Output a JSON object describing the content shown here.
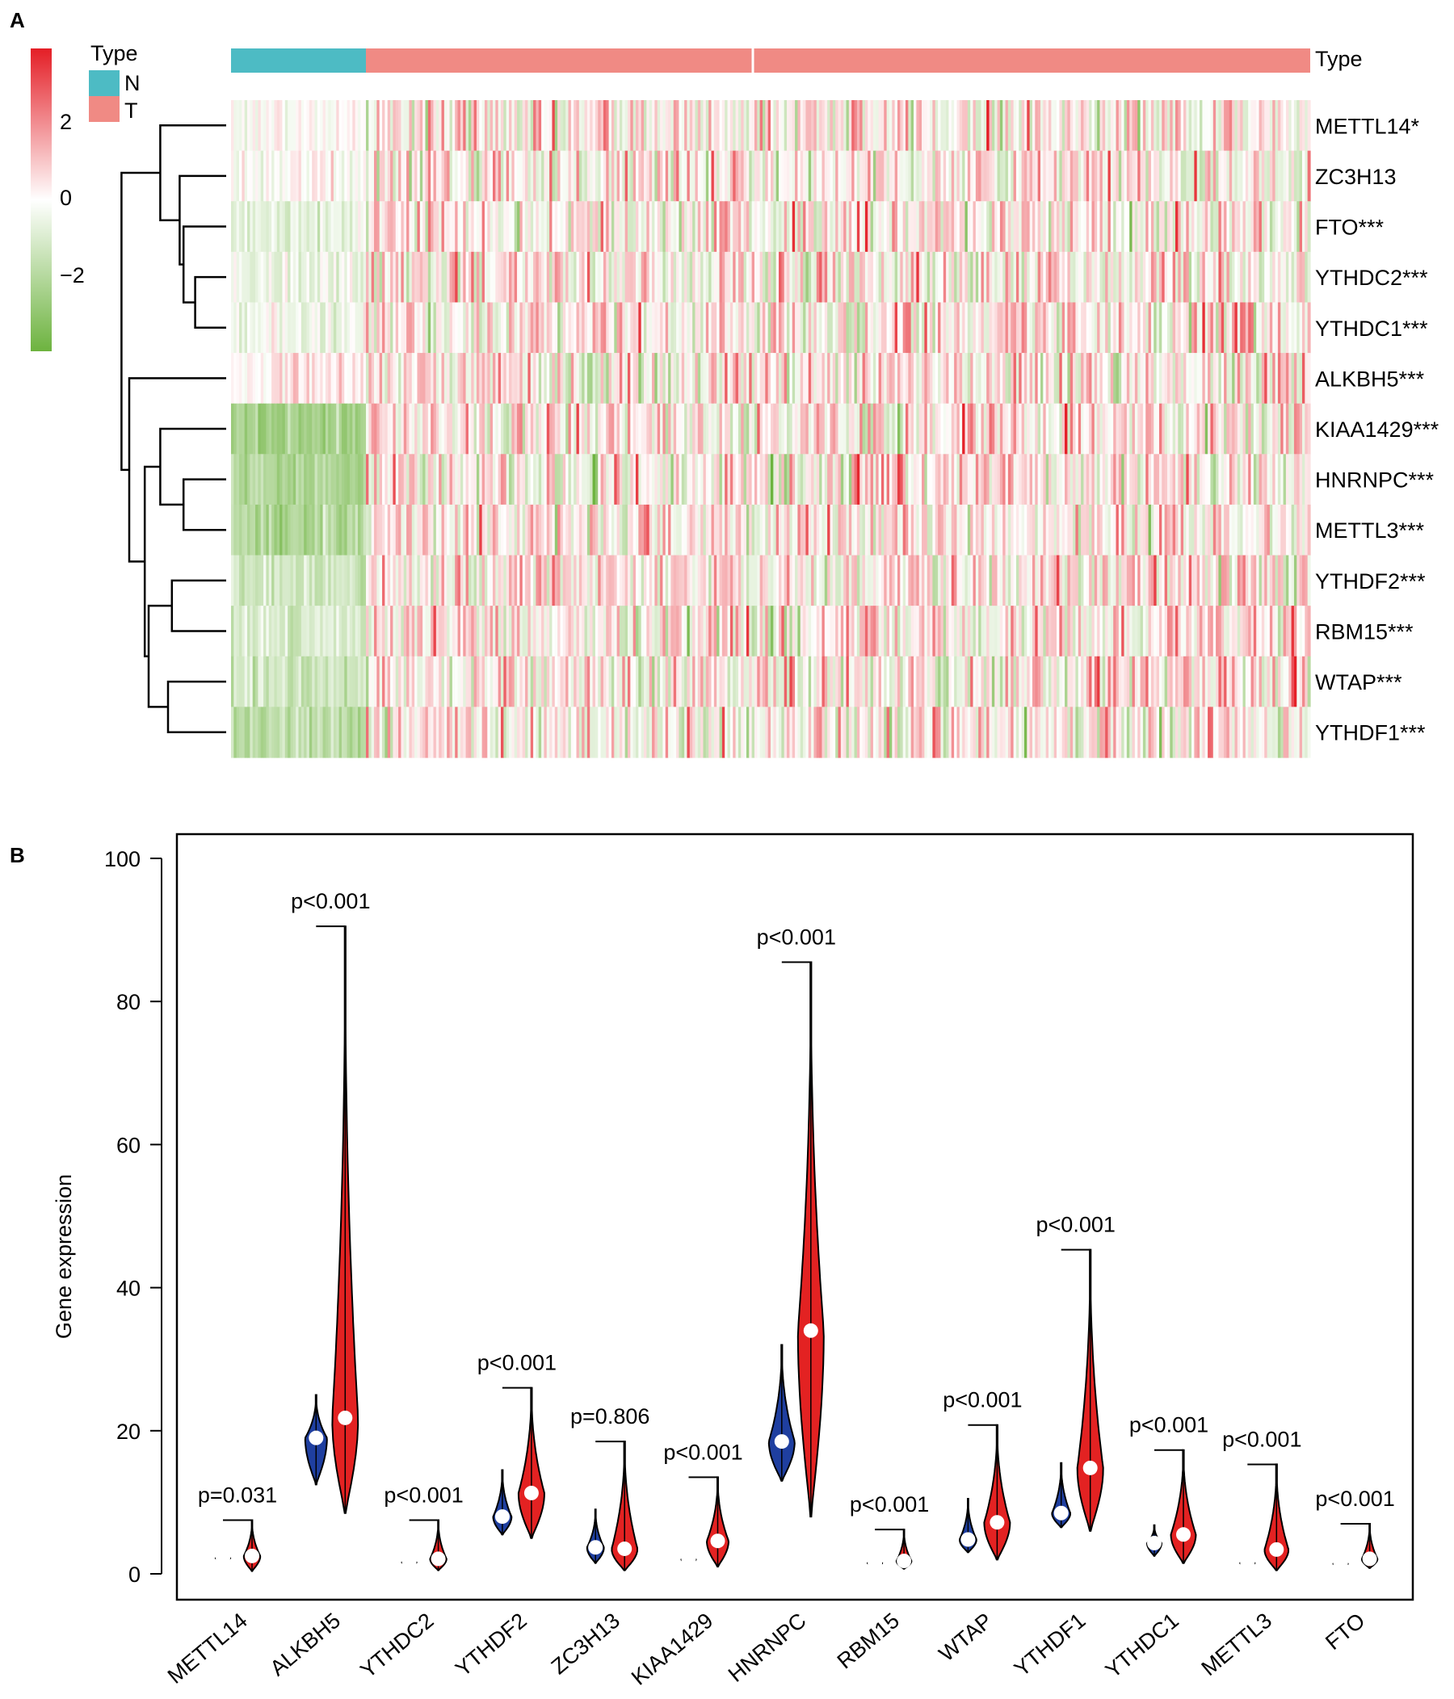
{
  "panels": [
    "A",
    "B"
  ],
  "heatmap": {
    "annotation_title": "Type",
    "annotation_label": "Type",
    "groups": [
      {
        "name": "N",
        "color": "#4DBBC4",
        "fraction": 0.125
      },
      {
        "name": "T",
        "color": "#F08A84",
        "fraction": 0.875
      }
    ],
    "colorbar": {
      "ticks": [
        "2",
        "0",
        "−2"
      ],
      "values": [
        2,
        0,
        -2
      ],
      "range": [
        -3.9,
        3.9
      ],
      "colors": {
        "high": "#E41E26",
        "mid": "#FFFFFF",
        "low": "#6DB33F"
      }
    },
    "rows": [
      {
        "label": "METTL14*",
        "n_bias": 0.0
      },
      {
        "label": "ZC3H13",
        "n_bias": 0.0
      },
      {
        "label": "FTO***",
        "n_bias": -0.6
      },
      {
        "label": "YTHDC2***",
        "n_bias": -0.5
      },
      {
        "label": "YTHDC1***",
        "n_bias": -0.4
      },
      {
        "label": "ALKBH5***",
        "n_bias": 0.3
      },
      {
        "label": "KIAA1429***",
        "n_bias": -2.2
      },
      {
        "label": "HNRNPC***",
        "n_bias": -2.1
      },
      {
        "label": "METTL3***",
        "n_bias": -2.0
      },
      {
        "label": "YTHDF2***",
        "n_bias": -1.3
      },
      {
        "label": "RBM15***",
        "n_bias": -1.0
      },
      {
        "label": "WTAP***",
        "n_bias": -1.2
      },
      {
        "label": "YTHDF1***",
        "n_bias": -1.8
      }
    ],
    "dendrogram": {
      "leaves": [
        {
          "label": "METTL14*",
          "order": 0
        },
        {
          "label": "ZC3H13",
          "order": 1
        },
        {
          "label": "FTO***",
          "order": 2
        },
        {
          "label": "YTHDC2***",
          "order": 3
        },
        {
          "label": "YTHDC1***",
          "order": 4
        },
        {
          "label": "ALKBH5***",
          "order": 5
        },
        {
          "label": "KIAA1429***",
          "order": 6
        },
        {
          "label": "HNRNPC***",
          "order": 7
        },
        {
          "label": "METTL3***",
          "order": 8
        },
        {
          "label": "YTHDF2***",
          "order": 9
        },
        {
          "label": "RBM15***",
          "order": 10
        },
        {
          "label": "WTAP***",
          "order": 11
        },
        {
          "label": "YTHDF1***",
          "order": 12
        }
      ],
      "merges": [
        [
          3,
          4,
          0.08
        ],
        [
          -1,
          2,
          0.11
        ],
        [
          1,
          -2,
          0.12
        ],
        [
          0,
          -3,
          0.17
        ],
        [
          7,
          8,
          0.11
        ],
        [
          6,
          -5,
          0.17
        ],
        [
          9,
          10,
          0.14
        ],
        [
          11,
          12,
          0.15
        ],
        [
          -7,
          -8,
          0.2
        ],
        [
          -6,
          -9,
          0.21
        ],
        [
          5,
          -10,
          0.25
        ],
        [
          -4,
          -11,
          0.27
        ]
      ]
    }
  },
  "chart_data": {
    "type": "violin",
    "title": "",
    "xlabel": "",
    "ylabel": "Gene expression",
    "ylim": [
      -2,
      100
    ],
    "yticks": [
      0,
      20,
      40,
      60,
      80,
      100
    ],
    "series_colors": {
      "N": "#1F3FA0",
      "T": "#E32222"
    },
    "categories": [
      "METTL14",
      "ALKBH5",
      "YTHDC2",
      "YTHDF2",
      "ZC3H13",
      "KIAA1429",
      "HNRNPC",
      "RBM15",
      "WTAP",
      "YTHDF1",
      "YTHDC1",
      "METTL3",
      "FTO"
    ],
    "pvalues": [
      "p=0.031",
      "p<0.001",
      "p<0.001",
      "p<0.001",
      "p=0.806",
      "p<0.001",
      "p<0.001",
      "p<0.001",
      "p<0.001",
      "p<0.001",
      "p<0.001",
      "p<0.001",
      "p<0.001"
    ],
    "bracket_y": [
      7.5,
      90.5,
      7.5,
      26,
      18.5,
      13.5,
      85.5,
      6.2,
      20.8,
      45.3,
      17.3,
      15.3,
      7.0
    ],
    "series": [
      {
        "name": "N",
        "medians": [
          2.2,
          19.0,
          1.6,
          8.0,
          3.7,
          2.0,
          18.5,
          1.5,
          4.8,
          8.5,
          4.3,
          1.5,
          1.4
        ],
        "mins": [
          1.8,
          12.5,
          1.2,
          5.5,
          1.5,
          1.5,
          13.0,
          1.1,
          3.0,
          6.5,
          2.5,
          1.1,
          1.1
        ],
        "maxs": [
          2.7,
          25.0,
          2.0,
          14.5,
          9.0,
          2.5,
          32.0,
          1.9,
          10.5,
          15.5,
          6.8,
          1.9,
          1.8
        ]
      },
      {
        "name": "T",
        "medians": [
          2.5,
          21.8,
          2.1,
          11.3,
          3.5,
          4.6,
          34.0,
          1.8,
          7.2,
          14.8,
          5.5,
          3.4,
          2.1
        ],
        "mins": [
          0.4,
          8.5,
          0.5,
          5.0,
          0.5,
          1.0,
          8.0,
          0.7,
          2.0,
          6.0,
          1.5,
          0.5,
          0.8
        ],
        "maxs": [
          7.5,
          90.5,
          7.5,
          26.0,
          18.5,
          13.5,
          85.5,
          6.2,
          20.8,
          45.3,
          17.3,
          15.3,
          7.0
        ]
      }
    ]
  }
}
